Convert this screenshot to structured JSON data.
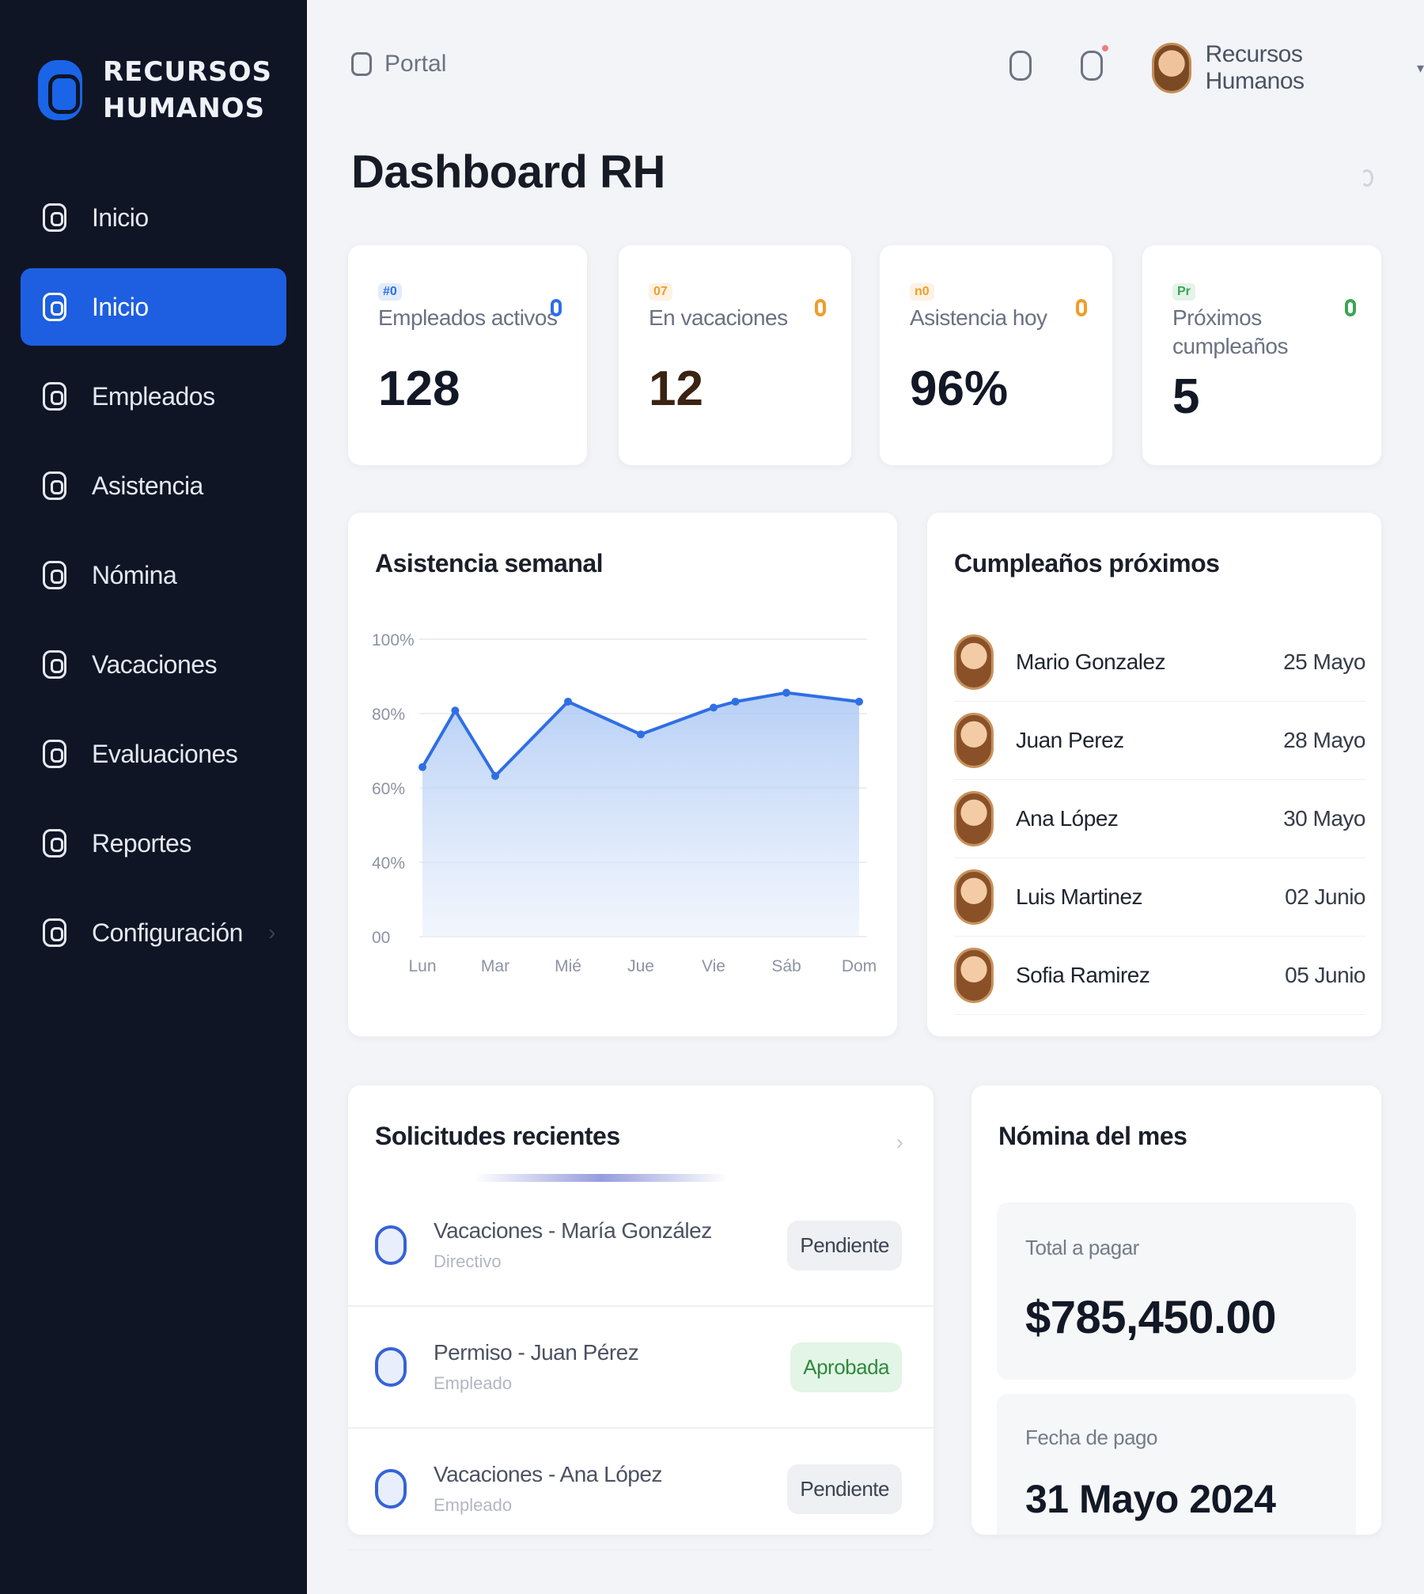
{
  "brand": {
    "line1": "RECURSOS",
    "line2": "HUMANOS",
    "accent": "#1a64e8"
  },
  "sidebar": {
    "items": [
      {
        "label": "Inicio",
        "icon": "home-icon",
        "active": false
      },
      {
        "label": "Inicio",
        "icon": "dashboard-icon",
        "active": true
      },
      {
        "label": "Empleados",
        "icon": "users-icon",
        "active": false
      },
      {
        "label": "Asistencia",
        "icon": "clock-icon",
        "active": false
      },
      {
        "label": "Nómina",
        "icon": "payroll-icon",
        "active": false
      },
      {
        "label": "Vacaciones",
        "icon": "calendar-icon",
        "active": false
      },
      {
        "label": "Evaluaciones",
        "icon": "evaluation-icon",
        "active": false
      },
      {
        "label": "Reportes",
        "icon": "report-icon",
        "active": false
      },
      {
        "label": "Configuración",
        "icon": "gear-icon",
        "active": false
      }
    ]
  },
  "topbar": {
    "breadcrumb": "Portal",
    "user_name": "Recursos Humanos",
    "icons": [
      "search-icon",
      "bell-icon",
      "avatar",
      "chevron-down-icon"
    ]
  },
  "page": {
    "title": "Dashboard RH"
  },
  "stats": [
    {
      "tag": "#0",
      "label": "Empleados activos",
      "value": "128",
      "color": "#2e6fe8"
    },
    {
      "tag": "07",
      "label": "En vacaciones",
      "value": "12",
      "color": "#f29d2a"
    },
    {
      "tag": "n0",
      "label": "Asistencia hoy",
      "value": "96%",
      "color": "#f29d2a"
    },
    {
      "tag": "Pr",
      "label": "Próximos cumpleaños",
      "value": "5",
      "color": "#3aa655"
    }
  ],
  "attendance": {
    "title": "Asistencia semanal"
  },
  "chart_data": {
    "type": "area",
    "title": "Asistencia semanal",
    "categories": [
      "Lun",
      "Mar",
      "Mié",
      "Jue",
      "Vie",
      "Sáb",
      "Dom"
    ],
    "yticks": [
      "100%",
      "80%",
      "60%",
      "40%",
      "00"
    ],
    "ylim": [
      0,
      100
    ],
    "series": [
      {
        "x": [
          0,
          0.45,
          1,
          2,
          3,
          4,
          4.3,
          5,
          6
        ],
        "values": [
          57,
          76,
          54,
          79,
          68,
          77,
          79,
          82,
          79
        ]
      }
    ],
    "color": "#2f6fe4",
    "grid": true
  },
  "birthdays": {
    "title": "Cumpleaños próximos",
    "items": [
      {
        "name": "Mario Gonzalez",
        "date": "25 Mayo"
      },
      {
        "name": "Juan Perez",
        "date": "28 Mayo"
      },
      {
        "name": "Ana López",
        "date": "30 Mayo"
      },
      {
        "name": "Luis Martinez",
        "date": "02 Junio"
      },
      {
        "name": "Sofia Ramirez",
        "date": "05 Junio"
      }
    ]
  },
  "requests": {
    "title": "Solicitudes recientes",
    "items": [
      {
        "title": "Vacaciones - María González",
        "sub": "Directivo",
        "status": "Pendiente",
        "status_type": "pending"
      },
      {
        "title": "Permiso - Juan Pérez",
        "sub": "Empleado",
        "status": "Aprobada",
        "status_type": "approved"
      },
      {
        "title": "Vacaciones - Ana López",
        "sub": "Empleado",
        "status": "Pendiente",
        "status_type": "pending"
      }
    ]
  },
  "payroll": {
    "title": "Nómina del mes",
    "total_label": "Total a pagar",
    "total_value": "$785,450.00",
    "date_label": "Fecha de pago",
    "date_value": "31 Mayo 2024"
  }
}
